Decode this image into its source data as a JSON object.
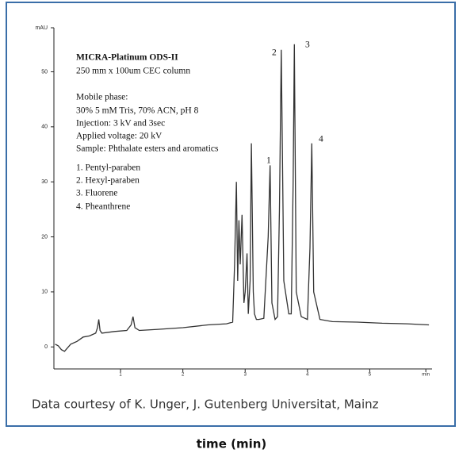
{
  "chart_data": {
    "type": "line",
    "color": "#333333",
    "x": [
      -0.05,
      0,
      0.05,
      0.1,
      0.2,
      0.3,
      0.4,
      0.5,
      0.6,
      0.63,
      0.65,
      0.67,
      0.7,
      0.9,
      1.1,
      1.17,
      1.2,
      1.23,
      1.3,
      1.6,
      2.0,
      2.4,
      2.7,
      2.8,
      2.83,
      2.86,
      2.88,
      2.9,
      2.92,
      2.95,
      2.98,
      3.0,
      3.03,
      3.05,
      3.08,
      3.1,
      3.13,
      3.15,
      3.18,
      3.22,
      3.3,
      3.37,
      3.4,
      3.43,
      3.48,
      3.52,
      3.55,
      3.58,
      3.62,
      3.7,
      3.74,
      3.77,
      3.79,
      3.82,
      3.9,
      4.0,
      4.04,
      4.07,
      4.1,
      4.2,
      4.4,
      4.8,
      5.2,
      5.6,
      5.95
    ],
    "values": [
      0.5,
      0.2,
      -0.5,
      -0.8,
      0.5,
      1,
      1.8,
      2,
      2.5,
      3.5,
      5,
      3,
      2.5,
      2.8,
      3,
      4,
      5.5,
      3.5,
      3,
      3.2,
      3.5,
      4,
      4.2,
      4.5,
      15,
      30,
      12,
      23,
      15,
      24,
      8,
      10,
      17,
      6,
      12,
      37,
      10,
      6,
      5,
      5,
      5.2,
      20,
      33,
      8,
      5,
      5.5,
      25,
      54,
      12,
      6,
      6,
      30,
      55,
      10,
      5.5,
      5,
      18,
      37,
      10,
      5,
      4.6,
      4.5,
      4.3,
      4.2,
      4.0
    ],
    "xlim": [
      -0.07,
      6.0
    ],
    "ylim": [
      -4,
      58
    ],
    "xticks": [
      1,
      2,
      3,
      4,
      5,
      {
        "value": 5.9,
        "label": "min"
      }
    ],
    "yticks": [
      0,
      10,
      20,
      30,
      40,
      50,
      {
        "value": 58,
        "label": "mAU"
      }
    ],
    "grid": false,
    "annotations": [
      "MICRA-Platinum ODS-II",
      "250 mm x 100um CEC column",
      "Mobile phase:",
      "30%  5 mM Tris, 70% ACN, pH 8",
      "Injection: 3 kV and 3sec",
      "Applied voltage: 20 kV",
      "Sample: Phthalate esters and aromatics",
      "1. Pentyl-paraben",
      "2. Hexyl-paraben",
      "3. Fluorene",
      "4. Pheanthrene"
    ],
    "peak_labels": [
      "1",
      "2",
      "3",
      "4"
    ],
    "caption": "Data courtesy of K. Unger, J. Gutenberg Universitat, Mainz",
    "xlabel": "time (min)"
  }
}
